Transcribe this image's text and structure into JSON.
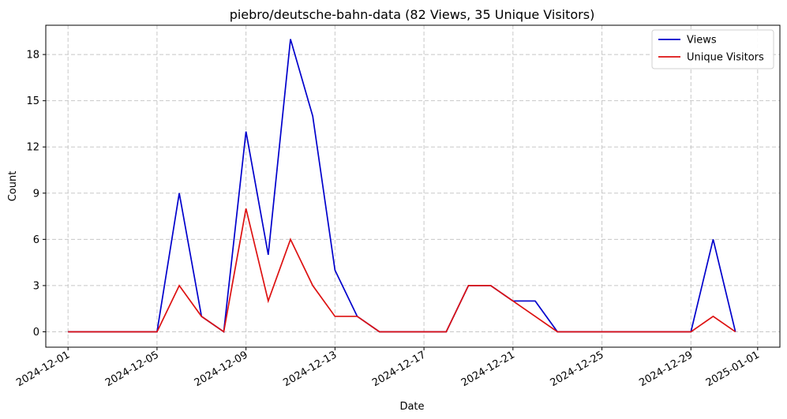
{
  "chart_data": {
    "type": "line",
    "title": "piebro/deutsche-bahn-data (82 Views, 35 Unique Visitors)",
    "xlabel": "Date",
    "ylabel": "Count",
    "x": [
      "2024-12-01",
      "2024-12-02",
      "2024-12-03",
      "2024-12-04",
      "2024-12-05",
      "2024-12-06",
      "2024-12-07",
      "2024-12-08",
      "2024-12-09",
      "2024-12-10",
      "2024-12-11",
      "2024-12-12",
      "2024-12-13",
      "2024-12-14",
      "2024-12-15",
      "2024-12-16",
      "2024-12-17",
      "2024-12-18",
      "2024-12-19",
      "2024-12-20",
      "2024-12-21",
      "2024-12-22",
      "2024-12-23",
      "2024-12-24",
      "2024-12-25",
      "2024-12-26",
      "2024-12-27",
      "2024-12-28",
      "2024-12-29",
      "2024-12-30",
      "2024-12-31"
    ],
    "xlim": [
      "2024-11-30",
      "2025-01-02"
    ],
    "ylim": [
      -1,
      19.9
    ],
    "yticks": [
      0,
      3,
      6,
      9,
      12,
      15,
      18
    ],
    "xticks": [
      "2024-12-01",
      "2024-12-05",
      "2024-12-09",
      "2024-12-13",
      "2024-12-17",
      "2024-12-21",
      "2024-12-25",
      "2024-12-29",
      "2025-01-01"
    ],
    "grid": true,
    "legend_position": "top-right",
    "series": [
      {
        "name": "Views",
        "color": "#0000cc",
        "values": [
          0,
          0,
          0,
          0,
          0,
          9,
          1,
          0,
          13,
          5,
          19,
          14,
          4,
          1,
          0,
          0,
          0,
          0,
          3,
          3,
          2,
          2,
          0,
          0,
          0,
          0,
          0,
          0,
          0,
          6,
          0
        ]
      },
      {
        "name": "Unique Visitors",
        "color": "#dd1111",
        "values": [
          0,
          0,
          0,
          0,
          0,
          3,
          1,
          0,
          8,
          2,
          6,
          3,
          1,
          1,
          0,
          0,
          0,
          0,
          3,
          3,
          2,
          1,
          0,
          0,
          0,
          0,
          0,
          0,
          0,
          1,
          0
        ]
      }
    ]
  }
}
